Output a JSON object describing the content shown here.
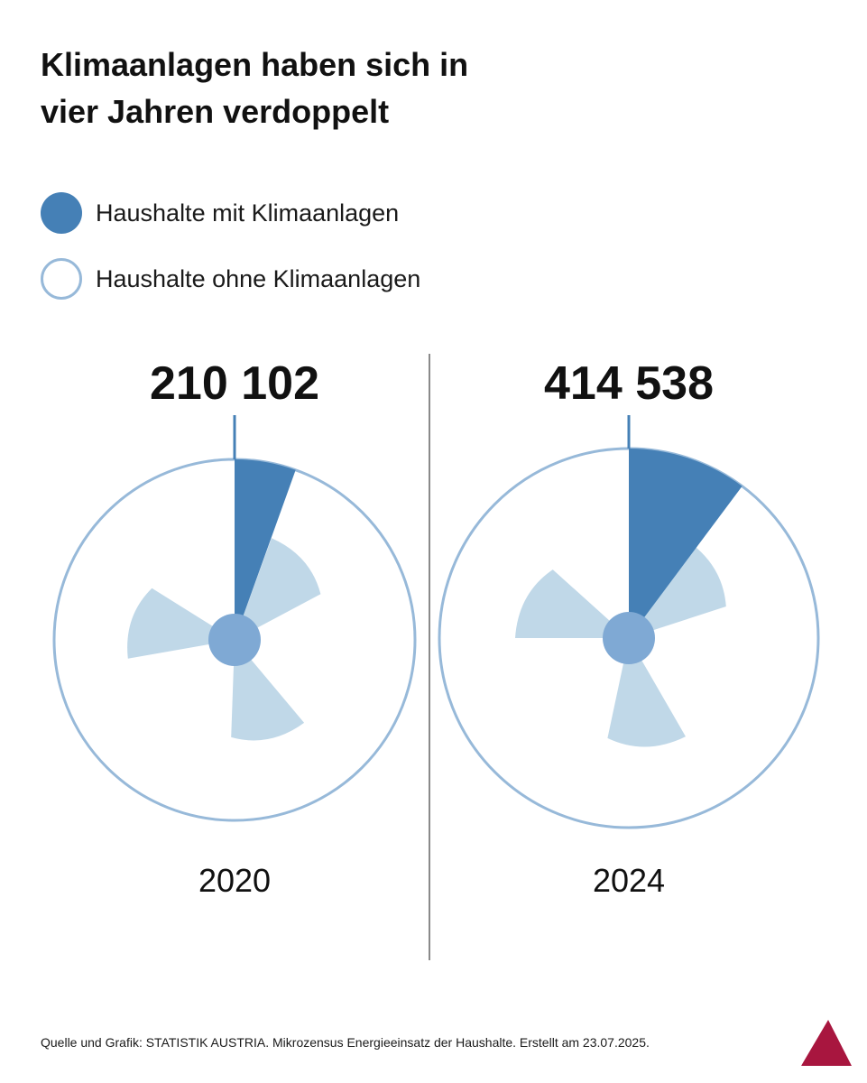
{
  "title_line1": "Klimaanlagen haben sich in",
  "title_line2": "vier Jahren verdoppelt",
  "legend": [
    {
      "label": "Haushalte mit Klimaanlagen",
      "color": "#4580b6",
      "style": "filled"
    },
    {
      "label": "Haushalte ohne Klimaanlagen",
      "color": "#97b9d9",
      "style": "outline"
    }
  ],
  "colors": {
    "with_ac": "#4580b6",
    "without_ac_ring": "#97b9d9",
    "fan_blade": "#c0d8e8",
    "fan_hub": "#7fa9d4",
    "divider": "#8a8a8a",
    "logo": "#a8163f"
  },
  "chart_data": {
    "type": "pie",
    "title": "Klimaanlagen haben sich in vier Jahren verdoppelt",
    "series_names": [
      "Haushalte mit Klimaanlagen",
      "Haushalte ohne Klimaanlagen"
    ],
    "charts": [
      {
        "year": "2020",
        "households_with_ac": 210102,
        "households_with_ac_label": "210 102",
        "share_with_ac_percent": 5.5
      },
      {
        "year": "2024",
        "households_with_ac": 414538,
        "households_with_ac_label": "414 538",
        "share_with_ac_percent": 10.2
      }
    ]
  },
  "source": "Quelle und Grafik: STATISTIK AUSTRIA. Mikrozensus Energieeinsatz der Haushalte. Erstellt am 23.07.2025.",
  "logo_icon": "statistik-austria-logo-icon"
}
